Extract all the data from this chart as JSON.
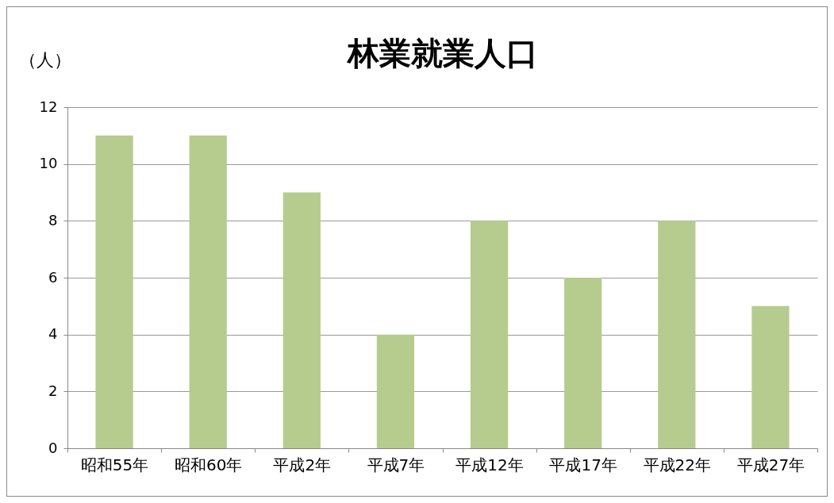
{
  "chart_data": {
    "type": "bar",
    "title": "林業就業人口",
    "ylabel": "（人）",
    "categories": [
      "昭和55年",
      "昭和60年",
      "平成2年",
      "平成7年",
      "平成12年",
      "平成17年",
      "平成22年",
      "平成27年"
    ],
    "values": [
      11,
      11,
      9,
      4,
      8,
      6,
      8,
      5
    ],
    "color": "#b5cc8e",
    "ylim": [
      0,
      12
    ],
    "yticks": [
      0,
      2,
      4,
      6,
      8,
      10,
      12
    ],
    "grid": "y"
  }
}
